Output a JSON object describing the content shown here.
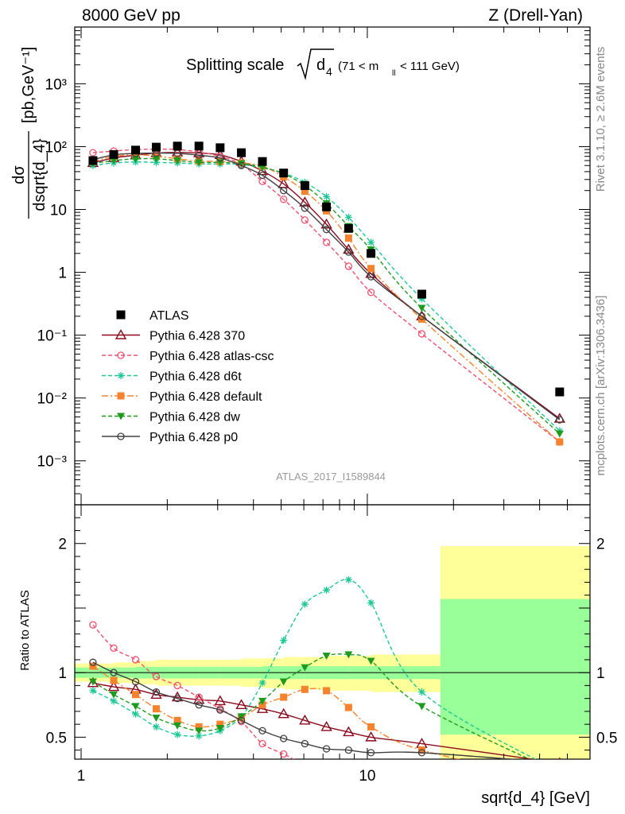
{
  "header": {
    "left": "8000 GeV pp",
    "right": "Z (Drell-Yan)"
  },
  "title": {
    "prefix": "Splitting scale",
    "sub": "4",
    "cut": "(71 < m",
    "cut_sub": "ll",
    "cut_tail": " < 111 GeV)"
  },
  "side_labels": {
    "rivet": "Rivet 3.1.10, ≥ 2.6M events",
    "mcplots": "mcplots.cern.ch [arXiv:1306.3436]"
  },
  "watermark": "ATLAS_2017_I1589844",
  "labels": {
    "ratio_ylabel": "Ratio to ATLAS",
    "xlabel": "sqrt{d_4} [GeV]",
    "ylabel_num": "dσ",
    "ylabel_den": "dsqrt{d_4}",
    "ylabel_unit": "[pb,GeV⁻¹]"
  },
  "colors": {
    "data": "#000000",
    "p370": "#8b0a1e",
    "atlascsc": "#f0506e",
    "d6t": "#1ec896",
    "default": "#f5822d",
    "dw": "#1e9b1e",
    "p0": "#404040",
    "band_yellow": "#ffff99",
    "band_green": "#99ff99"
  },
  "chart_data": {
    "type": "line",
    "x_scale": "log",
    "xlim": [
      0.95,
      60
    ],
    "main": {
      "y_scale": "log",
      "ylim": [
        0.0002,
        8000
      ],
      "y_ticks": [
        {
          "v": 0.001,
          "label": "10⁻³"
        },
        {
          "v": 0.01,
          "label": "10⁻²"
        },
        {
          "v": 0.1,
          "label": "10⁻¹"
        },
        {
          "v": 1,
          "label": "1"
        },
        {
          "v": 10,
          "label": "10"
        },
        {
          "v": 100,
          "label": "10²"
        },
        {
          "v": 1000,
          "label": "10³"
        }
      ]
    },
    "ratio": {
      "ylim": [
        0.33,
        2.3
      ],
      "y_ticks": [
        {
          "v": 0.5,
          "label": "0.5"
        },
        {
          "v": 1,
          "label": "1"
        },
        {
          "v": 2,
          "label": "2"
        }
      ]
    },
    "x_ticks": [
      {
        "v": 1,
        "label": "1"
      },
      {
        "v": 10,
        "label": "10"
      }
    ],
    "data": {
      "name": "ATLAS",
      "x": [
        1.1,
        1.3,
        1.55,
        1.83,
        2.17,
        2.58,
        3.06,
        3.63,
        4.3,
        5.1,
        6.05,
        7.2,
        8.6,
        10.3,
        15.5,
        47
      ],
      "y": [
        60,
        75,
        88,
        98,
        102,
        102,
        96,
        80,
        58,
        38,
        24,
        11,
        5,
        2,
        0.45,
        0.0125
      ]
    },
    "bands": [
      {
        "x0": 0.95,
        "x1": 1.3,
        "yellow": [
          0.93,
          1.07
        ],
        "green": [
          0.96,
          1.04
        ]
      },
      {
        "x0": 1.3,
        "x1": 1.55,
        "yellow": [
          0.92,
          1.08
        ],
        "green": [
          0.96,
          1.04
        ]
      },
      {
        "x0": 1.55,
        "x1": 1.83,
        "yellow": [
          0.91,
          1.09
        ],
        "green": [
          0.955,
          1.045
        ]
      },
      {
        "x0": 1.83,
        "x1": 2.17,
        "yellow": [
          0.9,
          1.1
        ],
        "green": [
          0.955,
          1.045
        ]
      },
      {
        "x0": 2.17,
        "x1": 2.58,
        "yellow": [
          0.9,
          1.1
        ],
        "green": [
          0.955,
          1.045
        ]
      },
      {
        "x0": 2.58,
        "x1": 3.06,
        "yellow": [
          0.9,
          1.1
        ],
        "green": [
          0.955,
          1.045
        ]
      },
      {
        "x0": 3.06,
        "x1": 3.63,
        "yellow": [
          0.9,
          1.1
        ],
        "green": [
          0.955,
          1.045
        ]
      },
      {
        "x0": 3.63,
        "x1": 4.3,
        "yellow": [
          0.89,
          1.11
        ],
        "green": [
          0.955,
          1.045
        ]
      },
      {
        "x0": 4.3,
        "x1": 5.1,
        "yellow": [
          0.88,
          1.11
        ],
        "green": [
          0.95,
          1.05
        ]
      },
      {
        "x0": 5.1,
        "x1": 6.05,
        "yellow": [
          0.87,
          1.12
        ],
        "green": [
          0.95,
          1.05
        ]
      },
      {
        "x0": 6.05,
        "x1": 7.2,
        "yellow": [
          0.87,
          1.12
        ],
        "green": [
          0.95,
          1.05
        ]
      },
      {
        "x0": 7.2,
        "x1": 8.6,
        "yellow": [
          0.86,
          1.13
        ],
        "green": [
          0.95,
          1.05
        ]
      },
      {
        "x0": 8.6,
        "x1": 10.3,
        "yellow": [
          0.86,
          1.13
        ],
        "green": [
          0.95,
          1.05
        ]
      },
      {
        "x0": 10.3,
        "x1": 18,
        "yellow": [
          0.85,
          1.14
        ],
        "green": [
          0.95,
          1.05
        ]
      },
      {
        "x0": 18,
        "x1": 60,
        "yellow": [
          0.33,
          1.98
        ],
        "green": [
          0.52,
          1.57
        ]
      }
    ],
    "series": [
      {
        "name": "Pythia 6.428 370",
        "key": "p370",
        "marker": "triangle-open",
        "dash": "",
        "x": [
          1.1,
          1.3,
          1.55,
          1.83,
          2.17,
          2.58,
          3.06,
          3.63,
          4.3,
          5.1,
          6.05,
          7.2,
          8.6,
          10.3,
          15.5,
          47
        ],
        "y": [
          55,
          66,
          73,
          79,
          81,
          79,
          74,
          58,
          41,
          25.5,
          13,
          5.8,
          2.3,
          0.95,
          0.2,
          0.0047
        ],
        "ratio": [
          0.92,
          0.89,
          0.87,
          0.83,
          0.81,
          0.79,
          0.78,
          0.75,
          0.72,
          0.68,
          0.63,
          0.58,
          0.54,
          0.5,
          0.45,
          0.3
        ]
      },
      {
        "name": "Pythia 6.428 atlas-csc",
        "key": "atlascsc",
        "marker": "circle-open",
        "dash": "5,3",
        "x": [
          1.1,
          1.3,
          1.55,
          1.83,
          2.17,
          2.58,
          3.06,
          3.63,
          4.3,
          5.1,
          6.05,
          7.2,
          8.6,
          10.3,
          15.5,
          47
        ],
        "y": [
          80,
          85,
          90,
          91,
          90,
          82,
          70,
          52,
          28,
          14.5,
          6.8,
          3,
          1.25,
          0.48,
          0.105,
          0.002
        ],
        "ratio": [
          1.37,
          1.19,
          1.1,
          0.97,
          0.9,
          0.81,
          0.72,
          0.62,
          0.45,
          0.37,
          0.29,
          0.27,
          0.25,
          0.24,
          0.23,
          0.16
        ]
      },
      {
        "name": "Pythia 6.428 d6t",
        "key": "d6t",
        "marker": "star",
        "dash": "5,3",
        "x": [
          1.1,
          1.3,
          1.55,
          1.83,
          2.17,
          2.58,
          3.06,
          3.63,
          4.3,
          5.1,
          6.05,
          7.2,
          8.6,
          10.3,
          15.5,
          47
        ],
        "y": [
          50,
          55,
          57,
          56,
          55,
          53,
          53,
          52,
          46,
          38,
          27,
          16,
          7.5,
          3,
          0.38,
          0.003
        ],
        "ratio": [
          0.86,
          0.78,
          0.68,
          0.58,
          0.52,
          0.51,
          0.55,
          0.66,
          0.92,
          1.25,
          1.53,
          1.64,
          1.72,
          1.54,
          0.85,
          0.23
        ]
      },
      {
        "name": "Pythia 6.428 default",
        "key": "default",
        "marker": "square",
        "dash": "8,3,2,3",
        "x": [
          1.1,
          1.3,
          1.55,
          1.83,
          2.17,
          2.58,
          3.06,
          3.63,
          4.3,
          5.1,
          6.05,
          7.2,
          8.6,
          10.3,
          15.5,
          47
        ],
        "y": [
          58,
          70,
          74,
          71,
          64,
          59,
          58,
          55,
          49,
          33,
          19.5,
          9.5,
          3.5,
          1.15,
          0.18,
          0.002
        ],
        "ratio": [
          1.05,
          0.94,
          0.83,
          0.72,
          0.63,
          0.58,
          0.6,
          0.65,
          0.75,
          0.81,
          0.87,
          0.86,
          0.73,
          0.58,
          0.4,
          0.16
        ]
      },
      {
        "name": "Pythia 6.428 dw",
        "key": "dw",
        "marker": "triangle-down",
        "dash": "5,3",
        "x": [
          1.1,
          1.3,
          1.55,
          1.83,
          2.17,
          2.58,
          3.06,
          3.63,
          4.3,
          5.1,
          6.05,
          7.2,
          8.6,
          10.3,
          15.5,
          47
        ],
        "y": [
          54,
          60,
          64,
          64,
          60,
          56,
          56,
          54,
          47,
          37,
          24,
          12.5,
          5.4,
          2.3,
          0.27,
          0.0027
        ],
        "ratio": [
          0.93,
          0.83,
          0.74,
          0.65,
          0.59,
          0.55,
          0.57,
          0.66,
          0.78,
          0.93,
          1.04,
          1.13,
          1.14,
          1.09,
          0.74,
          0.22
        ]
      },
      {
        "name": "Pythia 6.428 p0",
        "key": "p0",
        "marker": "circle-open",
        "dash": "",
        "x": [
          1.1,
          1.3,
          1.55,
          1.83,
          2.17,
          2.58,
          3.06,
          3.63,
          4.3,
          5.1,
          6.05,
          7.2,
          8.6,
          10.3,
          15.5,
          47
        ],
        "y": [
          62,
          74,
          78,
          79,
          78,
          73,
          66,
          50,
          35,
          20,
          10.5,
          4.8,
          2.1,
          0.85,
          0.2,
          0.0045
        ],
        "ratio": [
          1.08,
          1.0,
          0.93,
          0.85,
          0.8,
          0.75,
          0.71,
          0.63,
          0.55,
          0.49,
          0.45,
          0.41,
          0.4,
          0.38,
          0.38,
          0.3
        ]
      }
    ]
  }
}
